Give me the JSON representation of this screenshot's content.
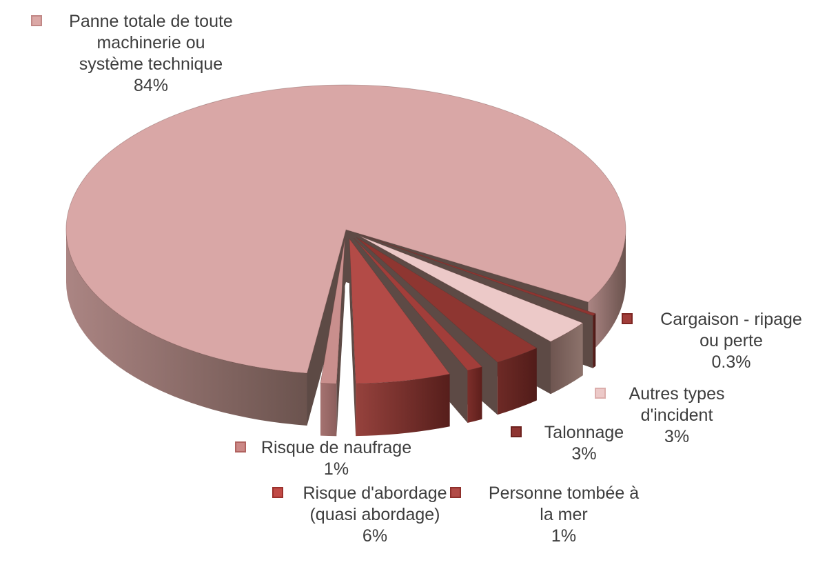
{
  "chart_data": {
    "type": "pie",
    "style": "3d-exploded",
    "title": "",
    "unit": "%",
    "background": "#ffffff",
    "text_color": "#3d3d3d",
    "wall_color": "#5d4a45",
    "slices": [
      {
        "slug": "panne-totale",
        "label": "Panne totale de toute machinerie ou système technique",
        "label_lines": [
          "Panne totale de toute",
          "machinerie ou",
          "système technique",
          "84%"
        ],
        "value": 84,
        "display": "84%",
        "color": "#d9a7a6",
        "side": "#ab8583",
        "side2": "#6b534e",
        "marker": "#dba8a6",
        "marker_border": "#c18886"
      },
      {
        "slug": "cargaison-ripage",
        "label": "Cargaison - ripage ou perte",
        "label_lines": [
          "Cargaison - ripage",
          "ou perte",
          "0.3%"
        ],
        "value": 0.3,
        "display": "0.3%",
        "color": "#8f3531",
        "side": "#5e211e",
        "side2": "#4a1714",
        "marker": "#a03d39",
        "marker_border": "#7e2723"
      },
      {
        "slug": "autres-types",
        "label": "Autres types d'incident",
        "label_lines": [
          "Autres types",
          "d'incident",
          "3%"
        ],
        "value": 3,
        "display": "3%",
        "color": "#ecc9c8",
        "side": "#6e5550",
        "side2": "#8d736c",
        "marker": "#ecc9c8",
        "marker_border": "#dcaeac"
      },
      {
        "slug": "talonnage",
        "label": "Talonnage",
        "label_lines": [
          "Talonnage",
          "3%"
        ],
        "value": 3,
        "display": "3%",
        "color": "#8e3631",
        "side": "#6e2a26",
        "side2": "#511c19",
        "marker": "#8e3431",
        "marker_border": "#6d211e"
      },
      {
        "slug": "personne-tombee",
        "label": "Personne tombée à la mer",
        "label_lines": [
          "Personne tombée à",
          "la mer",
          "1%"
        ],
        "value": 1,
        "display": "1%",
        "color": "#a23e3a",
        "side": "#7c2e2a",
        "side2": "#5e1f1c",
        "marker": "#b24b47",
        "marker_border": "#8e2f2b"
      },
      {
        "slug": "risque-abordage",
        "label": "Risque d'abordage (quasi abordage)",
        "label_lines": [
          "Risque d'abordage",
          "(quasi abordage)",
          "6%"
        ],
        "value": 6,
        "display": "6%",
        "color": "#b34b47",
        "side": "#96423d",
        "side2": "#561e1b",
        "marker": "#c14a46",
        "marker_border": "#9b302c"
      },
      {
        "slug": "risque-naufrage",
        "label": "Risque de naufrage",
        "label_lines": [
          "Risque de naufrage",
          "1%"
        ],
        "value": 1,
        "display": "1%",
        "color": "#c98f8d",
        "side": "#a57270",
        "side2": "#8c5f5d",
        "marker": "#cb8886",
        "marker_border": "#b16360"
      }
    ]
  }
}
